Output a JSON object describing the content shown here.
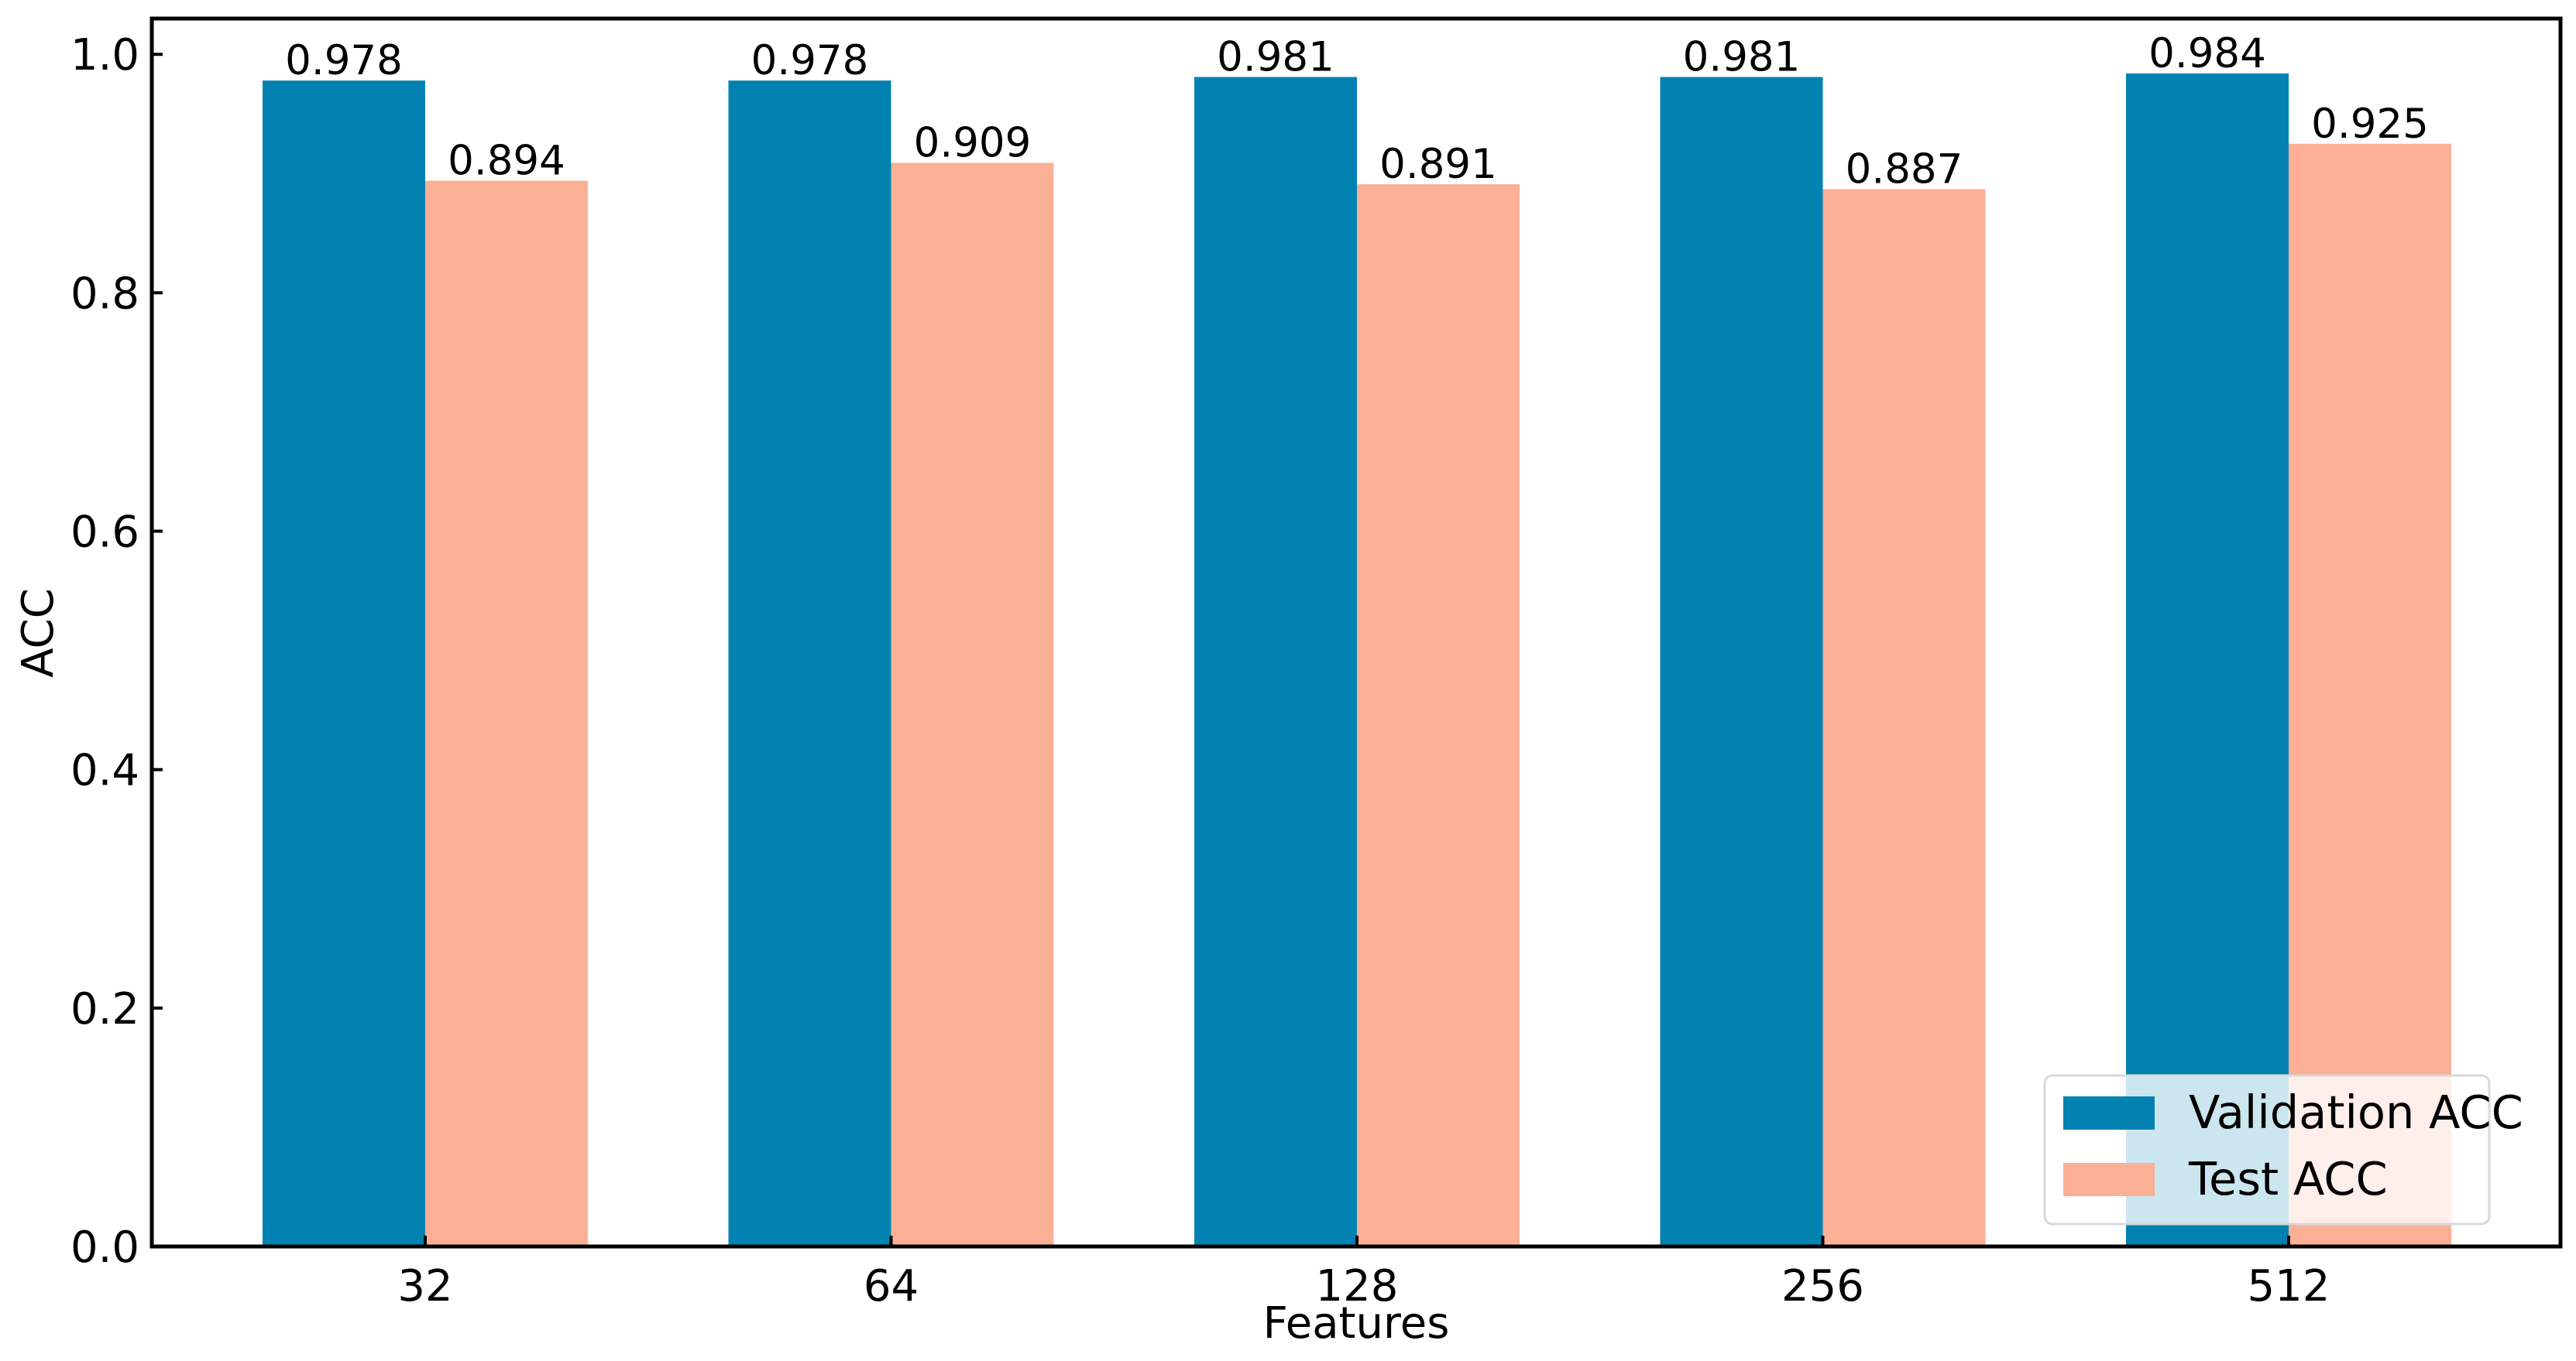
{
  "chart_data": {
    "type": "bar",
    "title": "",
    "xlabel": "Features",
    "ylabel": "ACC",
    "categories": [
      "32",
      "64",
      "128",
      "256",
      "512"
    ],
    "series": [
      {
        "name": "Validation ACC",
        "values": [
          0.978,
          0.978,
          0.981,
          0.981,
          0.984
        ],
        "color": "#0282b1"
      },
      {
        "name": "Test ACC",
        "values": [
          0.894,
          0.909,
          0.891,
          0.887,
          0.925
        ],
        "color": "#fbb096"
      }
    ],
    "data_labels": [
      [
        "0.978",
        "0.978",
        "0.981",
        "0.981",
        "0.984"
      ],
      [
        "0.894",
        "0.909",
        "0.891",
        "0.887",
        "0.925"
      ]
    ],
    "ylim": [
      0,
      1.03
    ],
    "yticks": [
      0.0,
      0.2,
      0.4,
      0.6,
      0.8,
      1.0
    ],
    "ytick_labels": [
      "0.0",
      "0.2",
      "0.4",
      "0.6",
      "0.8",
      "1.0"
    ],
    "grid": false,
    "legend": {
      "placement": "bottom-right",
      "entries": [
        "Validation ACC",
        "Test ACC"
      ]
    }
  }
}
